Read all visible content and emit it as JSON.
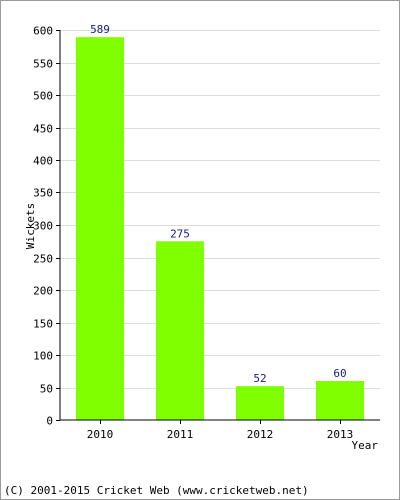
{
  "chart_data": {
    "type": "bar",
    "categories": [
      "2010",
      "2011",
      "2012",
      "2013"
    ],
    "values": [
      589,
      275,
      52,
      60
    ],
    "title": "",
    "xlabel": "Year",
    "ylabel": "Wickets",
    "ylim": [
      0,
      600
    ],
    "yticks": [
      0,
      50,
      100,
      150,
      200,
      250,
      300,
      350,
      400,
      450,
      500,
      550,
      600
    ],
    "grid": true,
    "legend": "none",
    "bar_color": "#80ff00",
    "label_color": "#1a1a80",
    "grid_color": "#dcdcdc"
  },
  "footer": {
    "credit": "(C) 2001-2015 Cricket Web (www.cricketweb.net)"
  }
}
